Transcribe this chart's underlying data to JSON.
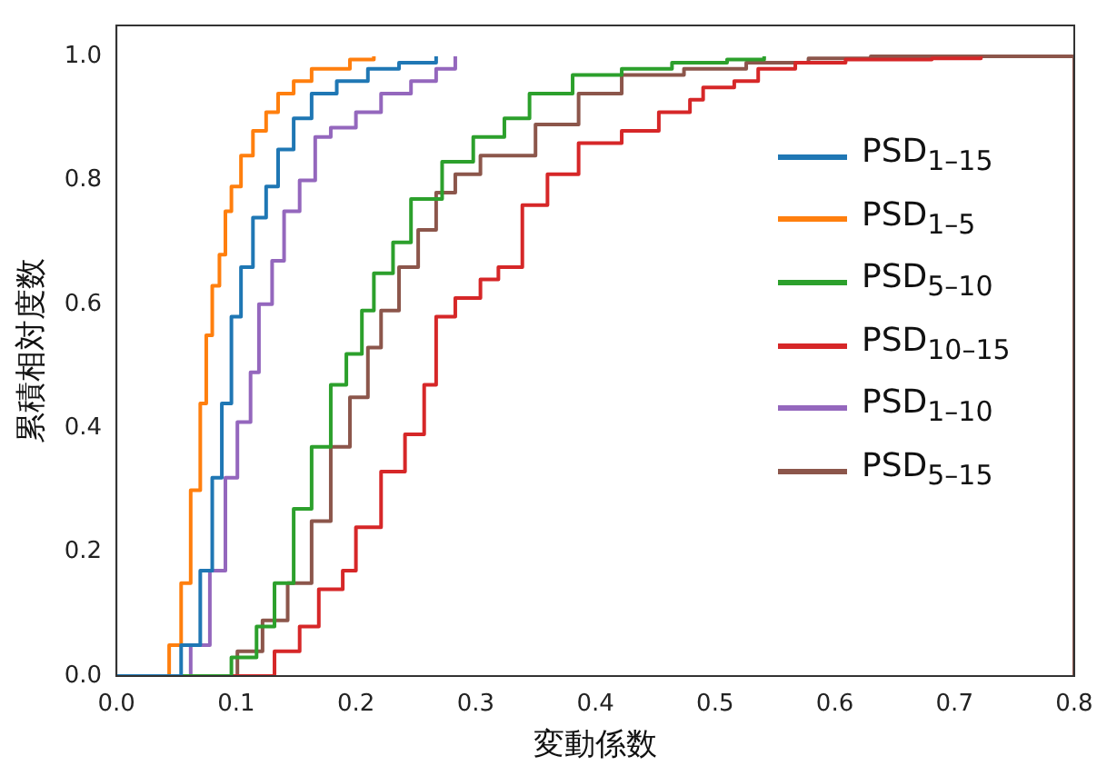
{
  "chart_data": {
    "type": "step",
    "xlabel": "変動係数",
    "ylabel": "累積相対度数",
    "legend": "center right",
    "grid": false,
    "marker": "none",
    "line_style": "solid",
    "xlim": [
      0,
      0.8
    ],
    "xticks": [
      {
        "value": 0,
        "label": "0.0"
      },
      {
        "value": 0.1,
        "label": "0.1"
      },
      {
        "value": 0.2,
        "label": "0.2"
      },
      {
        "value": 0.3,
        "label": "0.3"
      },
      {
        "value": 0.4,
        "label": "0.4"
      },
      {
        "value": 0.5,
        "label": "0.5"
      },
      {
        "value": 0.6,
        "label": "0.6"
      },
      {
        "value": 0.7,
        "label": "0.7"
      },
      {
        "value": 0.8,
        "label": "0.8"
      }
    ],
    "ylim": [
      0,
      1.05
    ],
    "yticks": [
      {
        "value": 0,
        "label": "0.0"
      },
      {
        "value": 0.2,
        "label": "0.2"
      },
      {
        "value": 0.4,
        "label": "0.4"
      },
      {
        "value": 0.6,
        "label": "0.6"
      },
      {
        "value": 0.8,
        "label": "0.8"
      },
      {
        "value": 1,
        "label": "1.0"
      }
    ],
    "series": [
      {
        "name": "PSD$_{1–15}$",
        "color": "#1f77b4",
        "x": [
          0,
          0.044,
          0.054,
          0.07,
          0.08,
          0.088,
          0.096,
          0.104,
          0.114,
          0.125,
          0.135,
          0.148,
          0.163,
          0.184,
          0.21,
          0.236,
          0.267
        ],
        "values": [
          0,
          0,
          0.05,
          0.17,
          0.32,
          0.44,
          0.58,
          0.66,
          0.74,
          0.79,
          0.85,
          0.9,
          0.94,
          0.96,
          0.98,
          0.99,
          1
        ]
      },
      {
        "name": "PSD$_{1–5}$",
        "color": "#ff7f0e",
        "x": [
          0,
          0.029,
          0.044,
          0.054,
          0.062,
          0.07,
          0.075,
          0.08,
          0.086,
          0.091,
          0.096,
          0.104,
          0.114,
          0.125,
          0.135,
          0.148,
          0.163,
          0.195,
          0.215
        ],
        "values": [
          0,
          0,
          0.05,
          0.15,
          0.3,
          0.44,
          0.55,
          0.63,
          0.68,
          0.75,
          0.79,
          0.84,
          0.88,
          0.91,
          0.94,
          0.96,
          0.98,
          0.995,
          1
        ]
      },
      {
        "name": "PSD$_{5–10}$",
        "color": "#2ca02c",
        "x": [
          0,
          0.07,
          0.096,
          0.117,
          0.132,
          0.148,
          0.163,
          0.179,
          0.192,
          0.205,
          0.215,
          0.231,
          0.246,
          0.272,
          0.298,
          0.324,
          0.345,
          0.381,
          0.422,
          0.464,
          0.51,
          0.541
        ],
        "values": [
          0,
          0,
          0.03,
          0.08,
          0.15,
          0.27,
          0.37,
          0.47,
          0.52,
          0.59,
          0.65,
          0.7,
          0.77,
          0.83,
          0.87,
          0.9,
          0.94,
          0.97,
          0.98,
          0.99,
          0.995,
          1
        ]
      },
      {
        "name": "PSD$_{10–15}$",
        "color": "#d62728",
        "x": [
          0,
          0.117,
          0.132,
          0.153,
          0.169,
          0.189,
          0.2,
          0.221,
          0.241,
          0.257,
          0.267,
          0.283,
          0.304,
          0.319,
          0.339,
          0.36,
          0.386,
          0.422,
          0.453,
          0.479,
          0.49,
          0.516,
          0.536,
          0.567,
          0.609,
          0.681,
          0.722
        ],
        "values": [
          0,
          0,
          0.04,
          0.08,
          0.14,
          0.17,
          0.24,
          0.33,
          0.39,
          0.47,
          0.58,
          0.61,
          0.64,
          0.66,
          0.76,
          0.81,
          0.86,
          0.88,
          0.91,
          0.93,
          0.95,
          0.96,
          0.98,
          0.99,
          0.995,
          0.997,
          1
        ]
      },
      {
        "name": "PSD$_{1–10}$",
        "color": "#9467bd",
        "x": [
          0,
          0.052,
          0.062,
          0.078,
          0.091,
          0.101,
          0.112,
          0.119,
          0.13,
          0.14,
          0.153,
          0.166,
          0.179,
          0.2,
          0.221,
          0.246,
          0.267,
          0.283
        ],
        "values": [
          0,
          0,
          0.05,
          0.17,
          0.32,
          0.41,
          0.49,
          0.6,
          0.67,
          0.75,
          0.8,
          0.87,
          0.885,
          0.91,
          0.94,
          0.96,
          0.98,
          1
        ]
      },
      {
        "name": "PSD$_{5–15}$",
        "color": "#8c564b",
        "x": [
          0,
          0.065,
          0.101,
          0.122,
          0.143,
          0.163,
          0.179,
          0.195,
          0.21,
          0.221,
          0.236,
          0.252,
          0.267,
          0.283,
          0.304,
          0.35,
          0.386,
          0.422,
          0.474,
          0.526,
          0.578,
          0.63,
          0.8,
          0.8
        ],
        "values": [
          0,
          0,
          0.04,
          0.09,
          0.15,
          0.25,
          0.37,
          0.45,
          0.53,
          0.59,
          0.66,
          0.72,
          0.78,
          0.81,
          0.84,
          0.89,
          0.94,
          0.97,
          0.98,
          0.99,
          0.997,
          1,
          1,
          0
        ]
      }
    ]
  }
}
